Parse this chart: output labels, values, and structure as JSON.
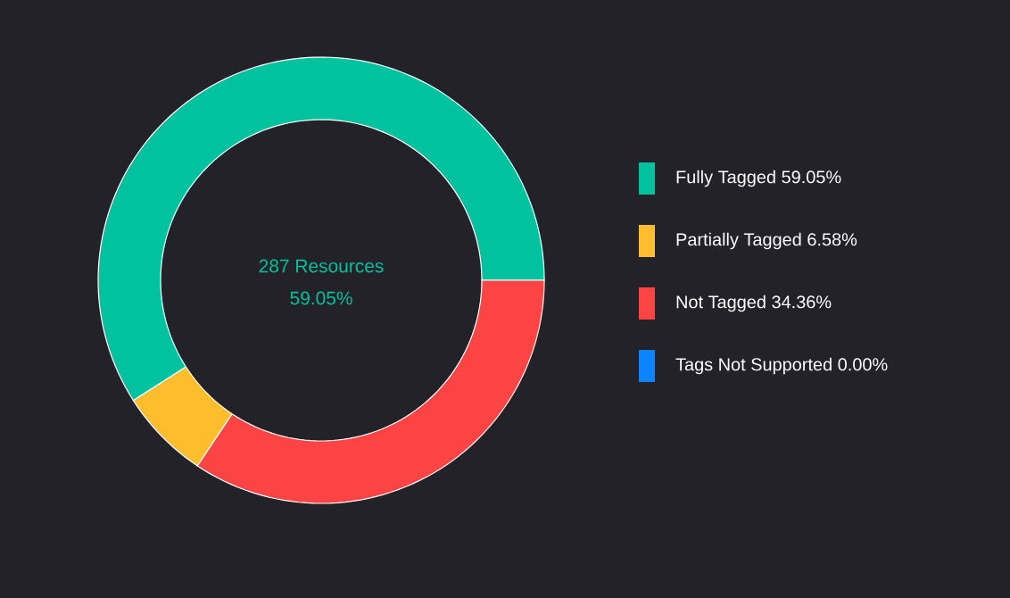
{
  "chart_data": {
    "type": "donut",
    "categories": [
      "Fully Tagged",
      "Partially Tagged",
      "Not Tagged",
      "Tags Not Supported"
    ],
    "values": [
      59.05,
      6.58,
      34.36,
      0.0
    ],
    "value_labels": [
      "59.05%",
      "6.58%",
      "34.36%",
      "0.00%"
    ],
    "colors": [
      "#00c29e",
      "#fdbd2d",
      "#fd4444",
      "#0d84ff"
    ],
    "annotations": [
      "287 Resources",
      "59.05%"
    ],
    "legend": "right"
  }
}
